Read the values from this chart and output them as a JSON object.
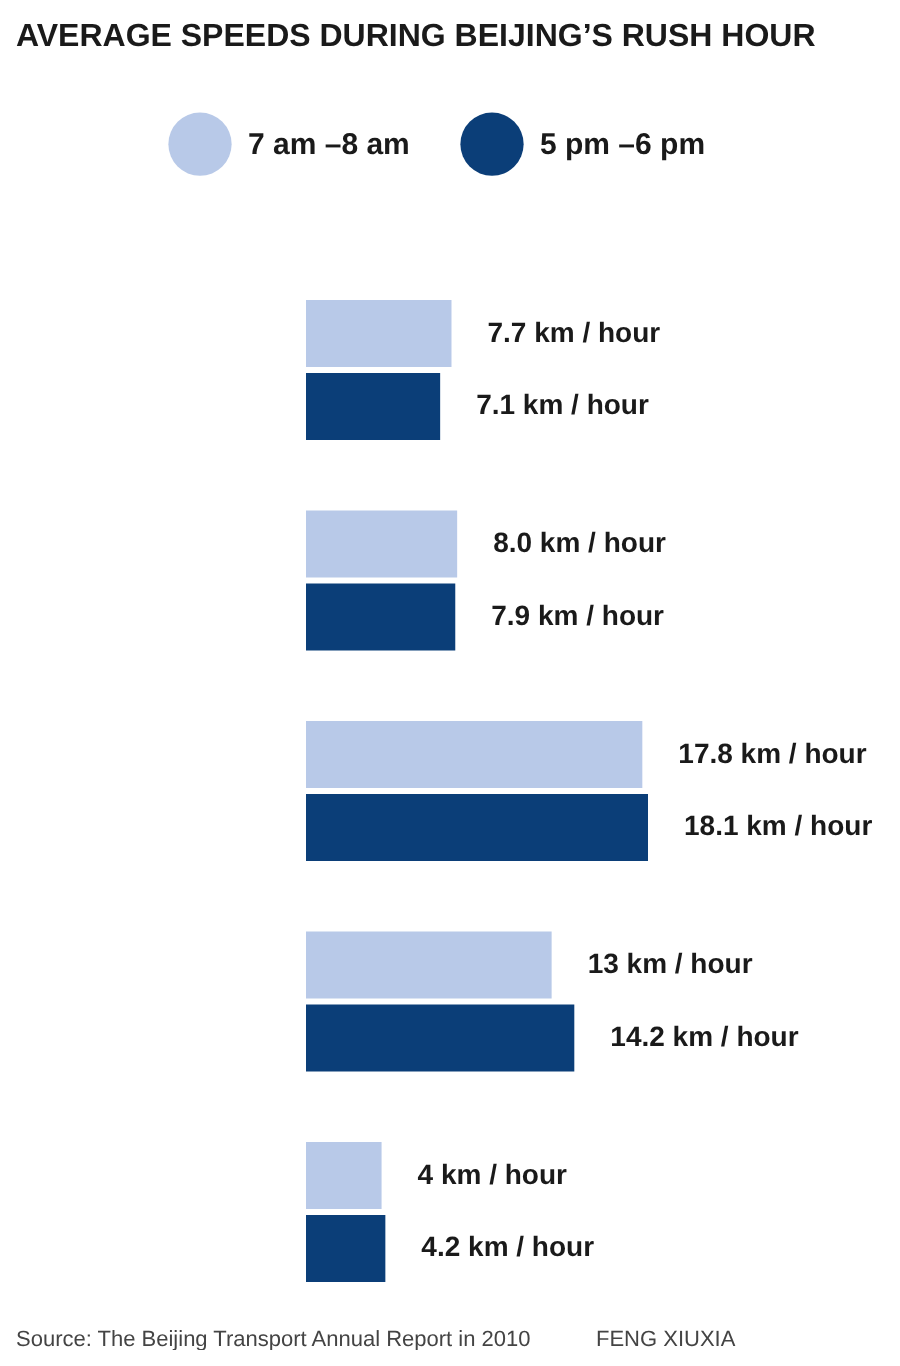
{
  "chart_data": {
    "type": "bar",
    "orientation": "horizontal",
    "title": "AVERAGE SPEEDS DURING BEIJING’S RUSH HOUR",
    "categories": [
      null,
      null,
      null,
      null,
      null
    ],
    "series": [
      {
        "name": "7 am –8 am",
        "color": "#b8c9e8",
        "values": [
          7.7,
          8.0,
          17.8,
          13,
          4
        ],
        "value_labels": [
          "7.7 km / hour",
          "8.0 km / hour",
          "17.8 km / hour",
          "13 km / hour",
          "4 km / hour"
        ]
      },
      {
        "name": "5 pm –6 pm",
        "color": "#0b3e78",
        "values": [
          7.1,
          7.9,
          18.1,
          14.2,
          4.2
        ],
        "value_labels": [
          "7.1 km / hour",
          "7.9 km / hour",
          "18.1 km / hour",
          "14.2 km / hour",
          "4.2 km / hour"
        ]
      }
    ],
    "legend": "top",
    "tick_labels": false,
    "annotations": [
      "Source: The Beijing Transport Annual Report in 2010",
      "FENG XIUXIA"
    ]
  }
}
